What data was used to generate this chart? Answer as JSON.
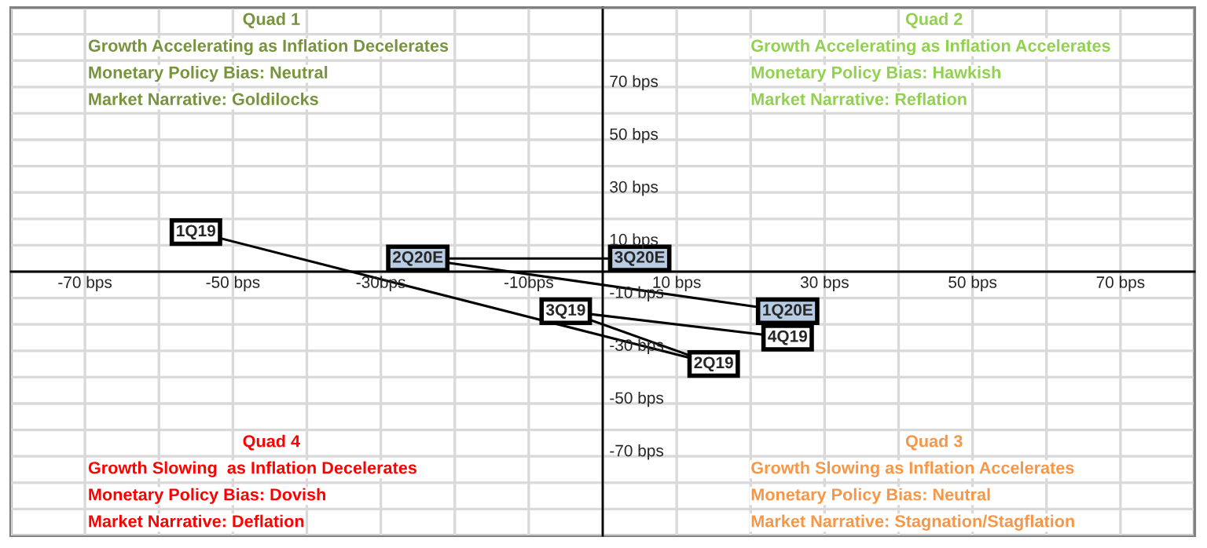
{
  "chart_data": {
    "type": "line",
    "xlim": [
      -80,
      80
    ],
    "ylim": [
      -100,
      100
    ],
    "xticks": [
      {
        "value": -70,
        "label": "-70 bps"
      },
      {
        "value": -50,
        "label": "-50 bps"
      },
      {
        "value": -30,
        "label": "-30bps"
      },
      {
        "value": -10,
        "label": "-10bps"
      },
      {
        "value": 10,
        "label": "10 bps"
      },
      {
        "value": 30,
        "label": "30 bps"
      },
      {
        "value": 50,
        "label": "50 bps"
      },
      {
        "value": 70,
        "label": "70 bps"
      }
    ],
    "yticks": [
      {
        "value": 70,
        "label": "70 bps"
      },
      {
        "value": 50,
        "label": "50 bps"
      },
      {
        "value": 30,
        "label": "30 bps"
      },
      {
        "value": 10,
        "label": "10 bps"
      },
      {
        "value": -10,
        "label": "-10 bps"
      },
      {
        "value": -30,
        "label": "-30 bps"
      },
      {
        "value": -50,
        "label": "-50 bps"
      },
      {
        "value": -70,
        "label": "-70 bps"
      }
    ],
    "grid": true,
    "marker": "square",
    "line_style": "solid",
    "series": [
      {
        "color": "#000000",
        "x": [
          -55,
          15,
          -5,
          25,
          25,
          -25,
          5
        ],
        "values": [
          15,
          -35,
          -15,
          -25,
          -15,
          5,
          5
        ],
        "colors": [
          "#ffffff",
          "#ffffff",
          "#ffffff",
          "#ffffff",
          "#b8cce4",
          "#b8cce4",
          "#b8cce4"
        ]
      }
    ],
    "annotations": [
      {
        "text": "1Q19",
        "x": -55,
        "y": 15
      },
      {
        "text": "2Q19",
        "x": 15,
        "y": -35
      },
      {
        "text": "3Q19",
        "x": -5,
        "y": -15
      },
      {
        "text": "4Q19",
        "x": 25,
        "y": -25
      },
      {
        "text": "1Q20E",
        "x": 25,
        "y": -15
      },
      {
        "text": "2Q20E",
        "x": -25,
        "y": 5
      },
      {
        "text": "3Q20E",
        "x": 5,
        "y": 5
      },
      "Quad 1",
      "Growth Accelerating as Inflation Decelerates",
      "Monetary Policy Bias: Neutral",
      "Market Narrative: Goldilocks",
      "Quad 2",
      "Growth Accelerating as Inflation Accelerates",
      "Monetary Policy Bias: Hawkish",
      "Market Narrative: Reflation",
      "Quad 4",
      "Growth Slowing  as Inflation Decelerates",
      "Monetary Policy Bias: Dovish",
      "Market Narrative: Deflation",
      "Quad 3",
      "Growth Slowing as Inflation Accelerates",
      "Monetary Policy Bias: Neutral",
      "Market Narrative: Stagnation/Stagflation"
    ]
  }
}
